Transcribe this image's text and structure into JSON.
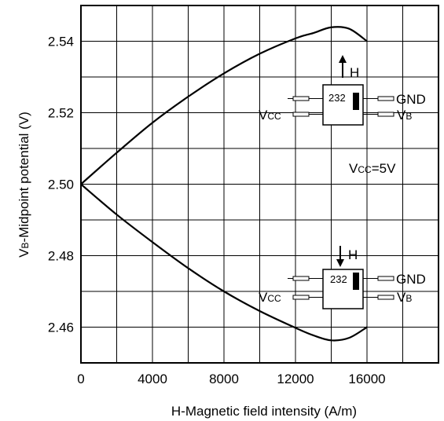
{
  "chart_data": {
    "type": "line",
    "xlabel": "H-Magnetic field intensity (A/m)",
    "ylabel_main": "V",
    "ylabel_sub": "B",
    "ylabel_rest": "-Midpoint potential (V)",
    "xlim": [
      0,
      20000
    ],
    "ylim": [
      2.45,
      2.55
    ],
    "grid": true,
    "x_ticks": [
      "0",
      "4000",
      "8000",
      "12000",
      "16000"
    ],
    "x_tick_values": [
      0,
      4000,
      8000,
      12000,
      16000
    ],
    "y_ticks": [
      "2.54",
      "2.52",
      "2.50",
      "2.48",
      "2.46"
    ],
    "y_tick_values": [
      2.54,
      2.52,
      2.5,
      2.48,
      2.46
    ],
    "series": [
      {
        "x": [
          0,
          2000,
          4000,
          6000,
          8000,
          10000,
          12000,
          13000,
          14000,
          15000,
          16000
        ],
        "values": [
          2.5,
          2.5088,
          2.5172,
          2.5245,
          2.531,
          2.5365,
          2.5408,
          2.5423,
          2.5439,
          2.5435,
          2.54
        ]
      },
      {
        "x": [
          0,
          2000,
          4000,
          6000,
          8000,
          10000,
          12000,
          13000,
          14000,
          15000,
          16000
        ],
        "values": [
          2.5,
          2.4915,
          2.4838,
          2.4765,
          2.47,
          2.4645,
          2.4598,
          2.4577,
          2.4563,
          2.457,
          2.46
        ]
      }
    ],
    "annotations": {
      "top_field": "H",
      "bottom_field": "H",
      "chip_label": "232",
      "gnd": "GND",
      "vcc_main": "V",
      "vcc_sub": "CC",
      "vb_main": "V",
      "vb_sub": "B",
      "supply_main": "V",
      "supply_sub": "CC",
      "supply_rest": "=5V"
    }
  }
}
